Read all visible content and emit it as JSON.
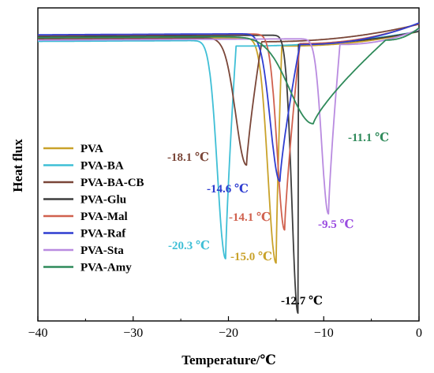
{
  "chart_data": {
    "type": "line",
    "title": "",
    "xlabel": "Temperature/℃",
    "ylabel": "Heat flux",
    "xlim": [
      -40,
      0
    ],
    "x_ticks": [
      -40,
      -30,
      -20,
      -10,
      0
    ],
    "x_tick_labels": [
      "−40",
      "−30",
      "−20",
      "−10",
      "0"
    ],
    "ylim": [
      0,
      1
    ],
    "y_ticks_shown": false,
    "legend_position": "left",
    "series": [
      {
        "name": "PVA",
        "color": "#c9a22a",
        "baseline": 0.904,
        "peak_x": -15.0,
        "peak_y": 0.185,
        "onset_x": -14.4,
        "end_value": 0.925,
        "shoulder": 0.878,
        "width": 1.2
      },
      {
        "name": "PVA-BA",
        "color": "#3fbfd6",
        "baseline": 0.896,
        "peak_x": -20.3,
        "peak_y": 0.199,
        "onset_x": -19.2,
        "end_value": 0.925,
        "shoulder": 0.878,
        "width": 1.2
      },
      {
        "name": "PVA-BA-CB",
        "color": "#7a4638",
        "baseline": 0.904,
        "peak_x": -18.1,
        "peak_y": 0.498,
        "onset_x": -16.5,
        "end_value": 0.948,
        "shoulder": 0.892,
        "width": 1.6
      },
      {
        "name": "PVA-Glu",
        "color": "#3d3d3d",
        "baseline": 0.912,
        "peak_x": -12.7,
        "peak_y": 0.025,
        "onset_x": -15.5,
        "end_value": 0.925,
        "shoulder": 0.882,
        "width": 0.9
      },
      {
        "name": "PVA-Mal",
        "color": "#d0614e",
        "baseline": 0.916,
        "peak_x": -14.1,
        "peak_y": 0.291,
        "onset_x": -12.5,
        "end_value": 0.951,
        "shoulder": 0.886,
        "width": 1.1
      },
      {
        "name": "PVA-Raf",
        "color": "#2f3dd0",
        "baseline": 0.917,
        "peak_x": -14.6,
        "peak_y": 0.446,
        "onset_x": -12.5,
        "end_value": 0.952,
        "shoulder": 0.883,
        "width": 1.4
      },
      {
        "name": "PVA-Sta",
        "color": "#b98be0",
        "baseline": 0.9,
        "peak_x": -9.5,
        "peak_y": 0.342,
        "onset_x": -8.3,
        "end_value": 0.932,
        "shoulder": 0.883,
        "width": 1.0
      },
      {
        "name": "PVA-Amy",
        "color": "#2f8a5a",
        "baseline": 0.908,
        "peak_x": -11.1,
        "peak_y": 0.63,
        "onset_x": -3.5,
        "end_value": 0.936,
        "shoulder": 0.897,
        "width": 3.5
      }
    ],
    "annotations": [
      {
        "text": "-18.1 ℃",
        "color": "#7a4638"
      },
      {
        "text": "-14.6 ℃",
        "color": "#2f3dd0"
      },
      {
        "text": "-14.1 ℃",
        "color": "#d0614e"
      },
      {
        "text": "-20.3 ℃",
        "color": "#3fbfd6"
      },
      {
        "text": "-15.0 ℃",
        "color": "#c9a22a"
      },
      {
        "text": "-12.7 ℃",
        "color": "#000000"
      },
      {
        "text": "-9.5 ℃",
        "color": "#9a4ce0"
      },
      {
        "text": "-11.1 ℃",
        "color": "#2f8a5a"
      }
    ]
  }
}
